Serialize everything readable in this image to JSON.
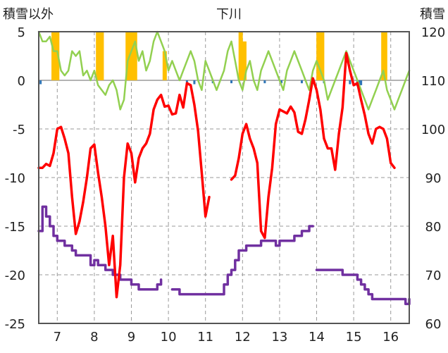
{
  "chart_data": {
    "type": "line",
    "title": "下川",
    "left_axis_title": "積雪以外",
    "right_axis_title": "積雪",
    "x_ticks": [
      "7",
      "8",
      "9",
      "10",
      "11",
      "12",
      "13",
      "14",
      "15",
      "16"
    ],
    "x_range": [
      6.5,
      16.5
    ],
    "left_ylim": [
      -25,
      5
    ],
    "left_ticks": [
      "5",
      "0",
      "-5",
      "-10",
      "-15",
      "-20",
      "-25"
    ],
    "right_ylim": [
      60,
      120
    ],
    "right_ticks": [
      "120",
      "110",
      "100",
      "90",
      "80",
      "70",
      "60"
    ],
    "grid": true,
    "colors": {
      "temperature": "#ff0000",
      "snow_depth": "#7030a0",
      "sunshine": "#92d050",
      "precip_bar": "#ffc000",
      "wind_bar": "#2e75b6"
    },
    "series": [
      {
        "axis": "left",
        "kind": "line",
        "x": [
          6.5,
          6.6,
          6.7,
          6.8,
          6.9,
          7.0,
          7.1,
          7.2,
          7.3,
          7.4,
          7.5,
          7.6,
          7.7,
          7.8,
          7.9,
          8.0,
          8.1,
          8.2,
          8.3,
          8.4,
          8.5,
          8.6,
          8.7,
          8.8,
          8.9,
          9.0,
          9.1,
          9.2,
          9.3,
          9.4,
          9.5,
          9.6,
          9.7,
          9.8,
          9.9,
          10.0,
          10.1,
          10.2,
          10.3,
          10.4,
          10.5,
          10.6,
          10.7,
          10.8,
          10.9,
          11.0,
          11.1,
          11.2,
          11.3,
          11.4,
          11.5,
          11.6
        ],
        "y": [
          -9.0,
          -9.0,
          -8.6,
          -8.8,
          -7.5,
          -5.0,
          -4.8,
          -6.0,
          -7.5,
          -12.0,
          -15.8,
          -14.5,
          -12.5,
          -10.0,
          -7.0,
          -6.6,
          -9.5,
          -12.0,
          -15.0,
          -19.0,
          -16.0,
          -22.3,
          -19.0,
          -10.0,
          -6.5,
          -7.5,
          -10.5,
          -8.0,
          -7.0,
          -6.5,
          -5.5,
          -3.0,
          -2.0,
          -1.5,
          -2.7,
          -2.6,
          -3.5,
          -3.4,
          -1.5,
          -2.8,
          -0.3,
          -0.5,
          -2.5,
          -5.2,
          -9.5,
          -14.0,
          -12.0,
          null,
          null,
          null,
          null,
          null
        ]
      },
      {
        "axis": "left",
        "kind": "line",
        "x": [
          11.7,
          11.8,
          11.9,
          12.0,
          12.1,
          12.2,
          12.3,
          12.4,
          12.5,
          12.6,
          12.7,
          12.8,
          12.9,
          13.0,
          13.1,
          13.2,
          13.3,
          13.4,
          13.5,
          13.6,
          13.7,
          13.8,
          13.9,
          14.0,
          14.1,
          14.2,
          14.3,
          14.4,
          14.5,
          14.6,
          14.7,
          14.8,
          14.9,
          15.0,
          15.1,
          15.2,
          15.3,
          15.4,
          15.5,
          15.6,
          15.7,
          15.8,
          15.9,
          16.0,
          16.1,
          16.2,
          16.3,
          16.4,
          16.5
        ],
        "y": [
          -10.2,
          -9.8,
          -8.0,
          -5.5,
          -4.5,
          -6.0,
          -7.0,
          -8.5,
          -15.5,
          -16.2,
          -12.0,
          -9.0,
          -4.5,
          -3.0,
          -3.2,
          -3.4,
          -2.7,
          -3.3,
          -5.3,
          -5.5,
          -4.0,
          -2.0,
          0.2,
          -1.0,
          -3.0,
          -6.0,
          -7.0,
          -7.0,
          -9.2,
          -5.5,
          -2.8,
          2.8,
          1.0,
          -0.5,
          -0.3,
          -2.0,
          -3.6,
          -5.5,
          -6.5,
          -5.0,
          -4.8,
          -5.0,
          -6.0,
          -8.5,
          -9.0,
          null,
          null,
          null,
          null
        ]
      },
      {
        "axis": "right",
        "kind": "step",
        "x": [
          6.5,
          6.6,
          6.7,
          6.8,
          6.9,
          7.0,
          7.1,
          7.2,
          7.3,
          7.4,
          7.5,
          7.6,
          7.7,
          7.8,
          7.9,
          8.0,
          8.1,
          8.2,
          8.3,
          8.4,
          8.5,
          8.6,
          8.7,
          8.8,
          8.9,
          9.0,
          9.1,
          9.2,
          9.3,
          9.4,
          9.5,
          9.6,
          9.7,
          9.8,
          9.9,
          10.0
        ],
        "y": [
          79,
          84,
          82,
          80,
          78,
          77,
          77,
          76,
          76,
          75,
          74,
          74,
          74,
          74,
          72,
          73,
          72,
          72,
          71,
          71,
          70,
          70,
          69,
          69,
          69,
          68,
          68,
          67,
          67,
          67,
          67,
          67,
          68,
          69,
          null,
          null
        ]
      },
      {
        "axis": "right",
        "kind": "step",
        "x": [
          10.1,
          10.2,
          10.3,
          10.4,
          10.5,
          10.6,
          10.7,
          10.8,
          10.9,
          11.0,
          11.1,
          11.2,
          11.3,
          11.4,
          11.5,
          11.6,
          11.7,
          11.8,
          11.9,
          12.0,
          12.1,
          12.2,
          12.3,
          12.4,
          12.5,
          12.6,
          12.7,
          12.8,
          12.9,
          13.0,
          13.1,
          13.2,
          13.3,
          13.4,
          13.5,
          13.6,
          13.7,
          13.8,
          13.9
        ],
        "y": [
          67,
          67,
          66,
          66,
          66,
          66,
          66,
          66,
          66,
          66,
          66,
          66,
          66,
          66,
          68,
          70,
          71,
          73,
          75,
          75,
          76,
          76,
          76,
          76,
          77,
          77,
          77,
          77,
          76,
          77,
          77,
          77,
          77,
          78,
          78,
          79,
          79,
          80,
          80
        ]
      },
      {
        "axis": "right",
        "kind": "step",
        "x": [
          14.0,
          14.1,
          14.2,
          14.3,
          14.4,
          14.5,
          14.6,
          14.7,
          14.8,
          14.9,
          15.0,
          15.1,
          15.2,
          15.3,
          15.4,
          15.5,
          15.6,
          15.7,
          15.8,
          15.9,
          16.0,
          16.1,
          16.2,
          16.3,
          16.4,
          16.5
        ],
        "y": [
          71,
          71,
          71,
          71,
          71,
          71,
          71,
          70,
          70,
          70,
          70,
          69,
          68,
          67,
          66,
          65,
          65,
          65,
          65,
          65,
          65,
          65,
          65,
          65,
          64,
          65
        ]
      },
      {
        "axis": "left",
        "kind": "line",
        "x": [
          6.5,
          6.6,
          6.7,
          6.8,
          6.9,
          7.0,
          7.1,
          7.2,
          7.3,
          7.4,
          7.5,
          7.6,
          7.7,
          7.8,
          7.9,
          8.0,
          8.1,
          8.2,
          8.3,
          8.4,
          8.5,
          8.6,
          8.7,
          8.8,
          8.9,
          9.0,
          9.1,
          9.2,
          9.3,
          9.4,
          9.5,
          9.6,
          9.7,
          9.8,
          9.9,
          10.0,
          10.1,
          10.2,
          10.3,
          10.4,
          10.5,
          10.6,
          10.7,
          10.8,
          10.9,
          11.0,
          11.1,
          11.2,
          11.3,
          11.4,
          11.5,
          11.6,
          11.7,
          11.8,
          11.9,
          12.0,
          12.1,
          12.2,
          12.3,
          12.4,
          12.5,
          12.6,
          12.7,
          12.8,
          12.9,
          13.0,
          13.1,
          13.2,
          13.3,
          13.4,
          13.5,
          13.6,
          13.7,
          13.8,
          13.9,
          14.0,
          14.1,
          14.2,
          14.3,
          14.4,
          14.5,
          14.6,
          14.7,
          14.8,
          14.9,
          15.0,
          15.1,
          15.2,
          15.3,
          15.4,
          15.5,
          15.6,
          15.7,
          15.8,
          15.9,
          16.0,
          16.1,
          16.2,
          16.3,
          16.4,
          16.5
        ],
        "y": [
          5,
          4,
          4,
          4.5,
          3,
          3,
          1,
          0.5,
          1,
          3,
          2.5,
          3,
          0.5,
          1,
          0,
          1,
          -0.5,
          -1,
          -1.5,
          -0.5,
          0,
          -1,
          -3,
          -2,
          2,
          3,
          4,
          2,
          3,
          1,
          2,
          4,
          5,
          4,
          3,
          1,
          2,
          1,
          0,
          1,
          2,
          3,
          2,
          0,
          -1,
          2,
          1,
          0,
          -1,
          0,
          1,
          3,
          4,
          2,
          0,
          -1,
          1,
          2,
          0,
          -1,
          1,
          2,
          3,
          2,
          1,
          0,
          -1,
          1,
          2,
          3,
          2,
          1,
          0,
          -1,
          1,
          2,
          1,
          0,
          -2,
          -1,
          0,
          1,
          2,
          3,
          2,
          1,
          0,
          -1,
          -2,
          -3,
          -2,
          -1,
          0,
          1,
          -1,
          -2,
          -3,
          -2,
          -1,
          0,
          1
        ]
      }
    ],
    "precip_bars": [
      {
        "x": 6.9,
        "v": 5
      },
      {
        "x": 7.0,
        "v": 5
      },
      {
        "x": 8.1,
        "v": 5
      },
      {
        "x": 8.2,
        "v": 5
      },
      {
        "x": 8.9,
        "v": 5
      },
      {
        "x": 8.95,
        "v": 5
      },
      {
        "x": 9.05,
        "v": 5
      },
      {
        "x": 9.1,
        "v": 5
      },
      {
        "x": 9.9,
        "v": 3
      },
      {
        "x": 11.95,
        "v": 5
      },
      {
        "x": 12.05,
        "v": 4
      },
      {
        "x": 14.05,
        "v": 5
      },
      {
        "x": 14.15,
        "v": 5
      },
      {
        "x": 15.8,
        "v": 5
      },
      {
        "x": 15.85,
        "v": 5
      }
    ],
    "wind_bars": [
      {
        "x": 6.55,
        "v": -0.4
      },
      {
        "x": 10.5,
        "v": -0.3
      },
      {
        "x": 10.7,
        "v": -0.4
      },
      {
        "x": 11.2,
        "v": -0.3
      },
      {
        "x": 11.7,
        "v": -0.3
      },
      {
        "x": 12.6,
        "v": -0.3
      },
      {
        "x": 13.05,
        "v": -0.3
      },
      {
        "x": 13.6,
        "v": -0.3
      },
      {
        "x": 14.2,
        "v": -0.3
      },
      {
        "x": 14.9,
        "v": -0.4
      },
      {
        "x": 15.1,
        "v": -0.6
      },
      {
        "x": 15.15,
        "v": -0.8
      },
      {
        "x": 15.2,
        "v": -0.5
      }
    ]
  }
}
